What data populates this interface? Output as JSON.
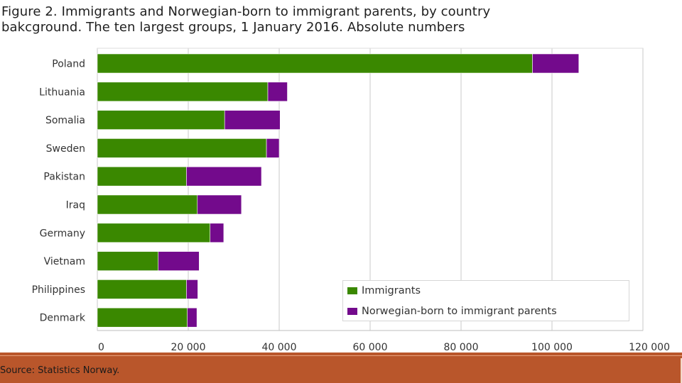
{
  "title_lines": [
    "Figure 2. Immigrants and Norwegian-born to immigrant parents, by country",
    "bakcground. The ten largest groups, 1 January 2016. Absolute numbers"
  ],
  "source": "Source: Statistics Norway.",
  "colors": {
    "immigrants": "#3a8800",
    "norwegian_born": "#730a8c",
    "grid": "#dcdcdc",
    "footer": "#b9562b"
  },
  "chart_data": {
    "type": "bar",
    "orientation": "horizontal",
    "stacked": true,
    "title": "Figure 2. Immigrants and Norwegian-born to immigrant parents, by country bakcground. The ten largest groups, 1 January 2016. Absolute numbers",
    "categories": [
      "Poland",
      "Lithuania",
      "Somalia",
      "Sweden",
      "Pakistan",
      "Iraq",
      "Germany",
      "Vietnam",
      "Philippines",
      "Denmark"
    ],
    "series": [
      {
        "name": "Immigrants",
        "values": [
          95700,
          37500,
          28000,
          37200,
          19600,
          22000,
          24800,
          13400,
          19600,
          19800
        ]
      },
      {
        "name": "Norwegian-born to immigrant parents",
        "values": [
          10200,
          4300,
          12200,
          2800,
          16500,
          9700,
          3000,
          9000,
          2500,
          2100
        ]
      }
    ],
    "xlim": [
      0,
      120000
    ],
    "x_ticks": [
      0,
      20000,
      40000,
      60000,
      80000,
      100000,
      120000
    ],
    "x_tick_labels": [
      "0",
      "20 000",
      "40 000",
      "60 000",
      "80 000",
      "100 000",
      "120 000"
    ],
    "xlabel": "",
    "ylabel": "",
    "grid": true,
    "legend_position": "bottom-right"
  }
}
